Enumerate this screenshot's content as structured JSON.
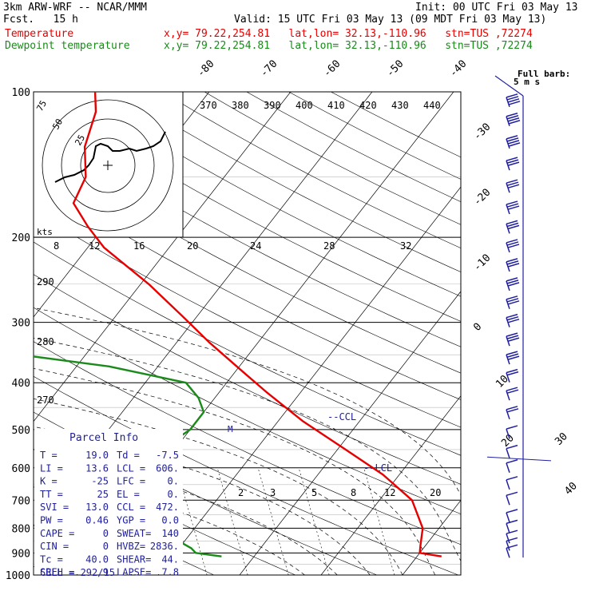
{
  "header": {
    "model": "3km ARW-WRF -- NCAR/MMM",
    "init": "Init: 00 UTC Fri 03 May 13",
    "fcst": "Fcst.   15 h",
    "valid": "Valid: 15 UTC Fri 03 May 13 (09 MDT Fri 03 May 13)",
    "temp_legend": "Temperature",
    "dew_legend": "Dewpoint temperature",
    "location": "x,y= 79.22,254.81   lat,lon= 32.13,-110.96   stn=TUS ,72274"
  },
  "colors": {
    "temperature": "#e60000",
    "dewpoint": "#1a8a1a",
    "barbs": "#2020a0",
    "grid": "#000000"
  },
  "chart_data": {
    "type": "line",
    "title": "",
    "pressure_levels": [
      "100",
      "200",
      "300",
      "400",
      "500",
      "600",
      "700",
      "800",
      "900",
      "1000"
    ],
    "pressure_range_hpa": [
      1000,
      100
    ],
    "log_pressure_axis": true,
    "isotherm_labels": [
      "-80",
      "-70",
      "-60",
      "-50",
      "-40",
      "-30",
      "-20",
      "-10",
      "0",
      "10",
      "20",
      "30",
      "40"
    ],
    "theta_labels": [
      "370",
      "380",
      "390",
      "400",
      "410",
      "420",
      "430",
      "440"
    ],
    "mixing_ratio_labels": [
      "2",
      "3",
      "5",
      "8",
      "12",
      "20"
    ],
    "theta_e_labels": [
      "290",
      "280",
      "270"
    ],
    "barb_header": "Full barb:",
    "barb_unit": "5 m s",
    "series": [
      {
        "name": "Temperature",
        "points": [
          [
            915,
            23
          ],
          [
            900,
            20
          ],
          [
            870,
            19.4
          ],
          [
            800,
            18
          ],
          [
            700,
            14
          ],
          [
            620,
            8
          ],
          [
            550,
            1
          ],
          [
            480,
            -7
          ],
          [
            420,
            -14
          ],
          [
            380,
            -19
          ],
          [
            330,
            -26
          ],
          [
            290,
            -32
          ],
          [
            250,
            -39
          ],
          [
            210,
            -48
          ],
          [
            190,
            -52
          ],
          [
            170,
            -56
          ],
          [
            150,
            -57
          ],
          [
            130,
            -60
          ],
          [
            110,
            -62
          ],
          [
            100,
            -64
          ]
        ]
      },
      {
        "name": "Dewpoint temperature",
        "points": [
          [
            915,
            -4
          ],
          [
            900,
            -7.5
          ],
          [
            880,
            -8.5
          ],
          [
            860,
            -10
          ],
          [
            800,
            -12
          ],
          [
            760,
            -14
          ],
          [
            720,
            -18
          ],
          [
            690,
            -22
          ],
          [
            640,
            -24
          ],
          [
            600,
            -24
          ],
          [
            560,
            -22
          ],
          [
            500,
            -20
          ],
          [
            460,
            -20
          ],
          [
            430,
            -22
          ],
          [
            400,
            -25
          ],
          [
            370,
            -36
          ],
          [
            350,
            -48
          ],
          [
            320,
            -56
          ],
          [
            280,
            -60
          ],
          [
            250,
            -58
          ],
          [
            220,
            -60
          ],
          [
            190,
            -64
          ],
          [
            160,
            -69
          ],
          [
            140,
            -72
          ],
          [
            120,
            -74
          ],
          [
            100,
            -76
          ]
        ]
      }
    ],
    "annotations": {
      "ccl": "--CCL",
      "lcl": "--LCL",
      "lfc": "M"
    },
    "hodograph": {
      "units": "kts",
      "ring_labels": [
        "25",
        "50",
        "75"
      ],
      "speed_labels": [
        "8",
        "12",
        "16",
        "20",
        "24",
        "28",
        "32"
      ],
      "points": [
        [
          -22,
          7
        ],
        [
          -18,
          5
        ],
        [
          -14,
          4
        ],
        [
          -10,
          2
        ],
        [
          -8,
          0
        ],
        [
          -6,
          -3
        ],
        [
          -5,
          -8
        ],
        [
          -3,
          -9
        ],
        [
          0,
          -8
        ],
        [
          2,
          -6
        ],
        [
          5,
          -6
        ],
        [
          9,
          -7
        ],
        [
          12,
          -6
        ],
        [
          16,
          -7
        ],
        [
          19,
          -8
        ],
        [
          22,
          -10
        ],
        [
          24,
          -14
        ]
      ]
    },
    "wind_barbs": [
      {
        "p": 105,
        "spd": 40,
        "dir": 290
      },
      {
        "p": 115,
        "spd": 40,
        "dir": 290
      },
      {
        "p": 128,
        "spd": 35,
        "dir": 285
      },
      {
        "p": 142,
        "spd": 30,
        "dir": 285
      },
      {
        "p": 158,
        "spd": 30,
        "dir": 285
      },
      {
        "p": 175,
        "spd": 25,
        "dir": 280
      },
      {
        "p": 192,
        "spd": 30,
        "dir": 280
      },
      {
        "p": 210,
        "spd": 30,
        "dir": 280
      },
      {
        "p": 230,
        "spd": 30,
        "dir": 280
      },
      {
        "p": 252,
        "spd": 30,
        "dir": 280
      },
      {
        "p": 275,
        "spd": 25,
        "dir": 275
      },
      {
        "p": 300,
        "spd": 25,
        "dir": 275
      },
      {
        "p": 328,
        "spd": 25,
        "dir": 275
      },
      {
        "p": 358,
        "spd": 25,
        "dir": 275
      },
      {
        "p": 390,
        "spd": 20,
        "dir": 270
      },
      {
        "p": 425,
        "spd": 15,
        "dir": 265
      },
      {
        "p": 465,
        "spd": 15,
        "dir": 260
      },
      {
        "p": 510,
        "spd": 10,
        "dir": 250
      },
      {
        "p": 560,
        "spd": 10,
        "dir": 240
      },
      {
        "p": 600,
        "spd": 5,
        "dir": 230
      },
      {
        "p": 650,
        "spd": 5,
        "dir": 210
      },
      {
        "p": 700,
        "spd": 5,
        "dir": 200
      },
      {
        "p": 760,
        "spd": 10,
        "dir": 190
      },
      {
        "p": 800,
        "spd": 10,
        "dir": 180
      },
      {
        "p": 840,
        "spd": 10,
        "dir": 170
      },
      {
        "p": 870,
        "spd": 10,
        "dir": 160
      },
      {
        "p": 900,
        "spd": 10,
        "dir": 150
      }
    ]
  },
  "parcel_info": {
    "title": "Parcel Info",
    "rows": [
      [
        "T  =",
        "19.0",
        "Td =",
        "-7.5"
      ],
      [
        "LI =",
        "13.6",
        "LCL =",
        "606."
      ],
      [
        "K  =",
        "-25",
        "LFC =",
        "0."
      ],
      [
        "TT =",
        "25",
        "EL  =",
        "0."
      ],
      [
        "SVI =",
        "13.0",
        "CCL =",
        "472."
      ],
      [
        "PW =",
        "0.46",
        "YGP =",
        "0.0"
      ],
      [
        "CAPE =",
        "0",
        "SWEAT=",
        "140"
      ],
      [
        "CIN =",
        "0",
        "HVBZ=",
        "2836."
      ],
      [
        "Tc =",
        "40.0",
        "SHEAR=",
        "44."
      ],
      [
        "SREH =",
        "9",
        "LAPSE=",
        "7.8"
      ]
    ],
    "cell": "CELL = 292/15"
  }
}
